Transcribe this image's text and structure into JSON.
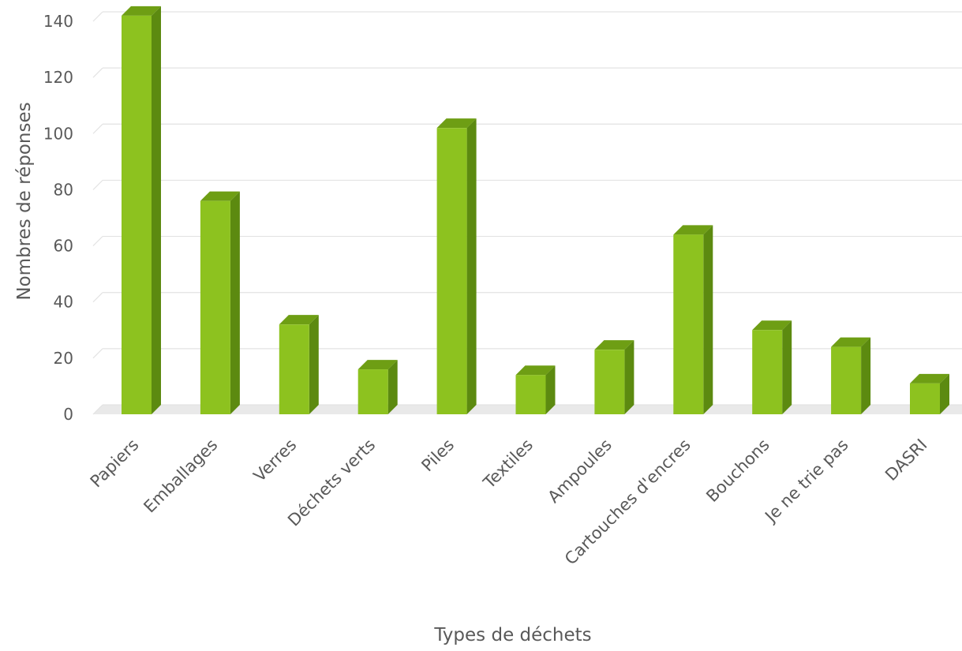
{
  "chart_data": {
    "type": "bar",
    "categories": [
      "Papiers",
      "Emballages",
      "Verres",
      "Déchets verts",
      "Piles",
      "Textiles",
      "Ampoules",
      "Cartouches d'encres",
      "Bouchons",
      "Je ne trie pas",
      "DASRI"
    ],
    "values": [
      142,
      76,
      32,
      16,
      102,
      14,
      23,
      64,
      30,
      24,
      11
    ],
    "xlabel": "Types de déchets",
    "ylabel": "Nombres de réponses",
    "ylim": [
      0,
      140
    ],
    "yticks": [
      0,
      20,
      40,
      60,
      80,
      100,
      120,
      140
    ],
    "grid": true,
    "legend": "none",
    "style": "3d-column",
    "colors": {
      "bar_front": "#8dc21f",
      "bar_side": "#5c8a10",
      "bar_top": "#6e9e14",
      "grid": "#e3e3e3",
      "text": "#595959"
    }
  }
}
